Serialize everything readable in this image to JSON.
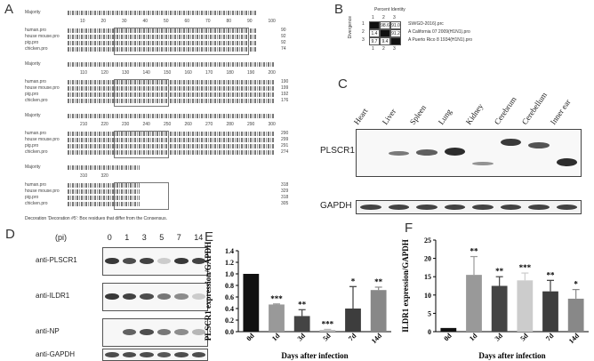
{
  "panels": {
    "A": "A",
    "B": "B",
    "C": "C",
    "D": "D",
    "E": "E",
    "F": "F"
  },
  "panelA": {
    "majority": "Majority",
    "rows": [
      "human.pro",
      "house mouse.pro",
      "pig.pro",
      "chicken.pro"
    ],
    "ruler1": [
      "10",
      "20",
      "30",
      "40",
      "50",
      "60",
      "70",
      "80",
      "90",
      "100"
    ],
    "ruler2": [
      "110",
      "120",
      "130",
      "140",
      "150",
      "160",
      "170",
      "180",
      "190",
      "200"
    ],
    "ruler3": [
      "210",
      "220",
      "230",
      "240",
      "250",
      "260",
      "270",
      "280",
      "290",
      "300"
    ],
    "ruler4": [
      "310",
      "320"
    ],
    "ends1": [
      "90",
      "92",
      "92",
      "74"
    ],
    "ends2": [
      "190",
      "199",
      "192",
      "176"
    ],
    "ends3": [
      "290",
      "299",
      "291",
      "274"
    ],
    "ends4": [
      "318",
      "329",
      "318",
      "305"
    ],
    "footer": "Decoration 'Decoration #5': Box residues that differ from the Consensus."
  },
  "panelB": {
    "header": "Percent Identity",
    "cols": [
      "1",
      "2",
      "3"
    ],
    "rows": [
      {
        "n": "1",
        "cells": [
          "",
          "98.6",
          "91.0"
        ],
        "name": "SW/GD-2016).prc"
      },
      {
        "n": "2",
        "cells": [
          "1.4",
          "",
          "91.2"
        ],
        "name": "A California 07 2009(H1N1).pro"
      },
      {
        "n": "3",
        "cells": [
          "9.7",
          "9.4",
          ""
        ],
        "name": "A Puerto Rico 8 1934(H1N1).pro"
      }
    ],
    "side": "Divergence"
  },
  "panelC": {
    "tissues": [
      "Heart",
      "Liver",
      "Spleen",
      "Lung",
      "Kidney",
      "Cerebrum",
      "Cerebellum",
      "Inner ear"
    ],
    "protein": "PLSCR1",
    "control": "GAPDH"
  },
  "panelD": {
    "pi": "(pi)",
    "days": [
      "0",
      "1",
      "3",
      "5",
      "7",
      "14"
    ],
    "blots": [
      "anti-PLSCR1",
      "anti-ILDR1",
      "anti-NP",
      "anti-GAPDH"
    ]
  },
  "chart_data": [
    {
      "type": "bar",
      "panel": "E",
      "categories": [
        "0d",
        "1d",
        "3d",
        "5d",
        "7d",
        "14d"
      ],
      "values": [
        1.0,
        0.47,
        0.27,
        0.03,
        0.4,
        0.72
      ],
      "errors": [
        0.0,
        0.01,
        0.11,
        0.01,
        0.38,
        0.05
      ],
      "significance": [
        "",
        "***",
        "**",
        "***",
        "*",
        "**"
      ],
      "colors": [
        "#111111",
        "#999999",
        "#444444",
        "#bbbbbb",
        "#3d3d3d",
        "#888888"
      ],
      "xlabel": "Days after infection",
      "ylabel": "PLSCR1 expression/GAPDH",
      "ylim": [
        0,
        1.4
      ],
      "yticks": [
        "0.0",
        "0.2",
        "0.4",
        "0.6",
        "0.8",
        "1.0",
        "1.2",
        "1.4"
      ]
    },
    {
      "type": "bar",
      "panel": "F",
      "categories": [
        "0d",
        "1d",
        "3d",
        "5d",
        "7d",
        "14d"
      ],
      "values": [
        1.0,
        15.5,
        12.5,
        14.0,
        11.0,
        9.0
      ],
      "errors": [
        0.0,
        5.0,
        2.5,
        2.0,
        3.0,
        2.5
      ],
      "significance": [
        "",
        "**",
        "**",
        "***",
        "**",
        "*"
      ],
      "colors": [
        "#111111",
        "#999999",
        "#444444",
        "#cccccc",
        "#3d3d3d",
        "#888888"
      ],
      "xlabel": "Days after infection",
      "ylabel": "ILDR1 expression/GAPDH",
      "ylim": [
        0,
        25
      ],
      "yticks": [
        "0",
        "5",
        "10",
        "15",
        "20",
        "25"
      ]
    }
  ]
}
